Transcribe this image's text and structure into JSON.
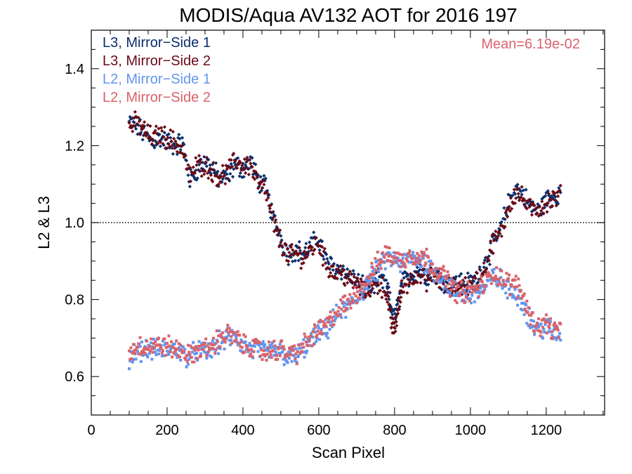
{
  "chart_data": {
    "type": "scatter",
    "title": "MODIS/Aqua AV132 AOT for 2016 197",
    "xlabel": "Scan Pixel",
    "ylabel": "L2 & L3",
    "xlim": [
      0,
      1354
    ],
    "ylim": [
      0.5,
      1.5
    ],
    "xticks": [
      0,
      200,
      400,
      600,
      800,
      1000,
      1200
    ],
    "yticks": [
      0.6,
      0.8,
      1.0,
      1.2,
      1.4
    ],
    "xtick_labels": [
      "0",
      "200",
      "400",
      "600",
      "800",
      "1000",
      "1200"
    ],
    "ytick_labels": [
      "0.6",
      "0.8",
      "1.0",
      "1.2",
      "1.4"
    ],
    "reference_line": 1.0,
    "annotation": "Mean=6.19e-02",
    "legend_position": "top-left",
    "grid": false,
    "series": [
      {
        "name": "L3, Mirror−Side 1",
        "color": "#0b2e6b",
        "x": [
          100,
          120,
          140,
          160,
          180,
          200,
          220,
          240,
          260,
          280,
          300,
          320,
          340,
          360,
          380,
          400,
          420,
          440,
          460,
          480,
          500,
          520,
          540,
          560,
          580,
          600,
          620,
          640,
          660,
          680,
          700,
          720,
          740,
          760,
          780,
          790,
          800,
          810,
          820,
          840,
          860,
          880,
          900,
          920,
          940,
          960,
          980,
          1000,
          1020,
          1040,
          1060,
          1080,
          1100,
          1120,
          1140,
          1160,
          1180,
          1200,
          1220,
          1240
        ],
        "y": [
          1.26,
          1.25,
          1.23,
          1.21,
          1.22,
          1.21,
          1.2,
          1.21,
          1.11,
          1.14,
          1.16,
          1.14,
          1.11,
          1.12,
          1.15,
          1.14,
          1.16,
          1.11,
          1.09,
          1.01,
          0.96,
          0.92,
          0.93,
          0.92,
          0.94,
          0.96,
          0.9,
          0.88,
          0.88,
          0.86,
          0.85,
          0.83,
          0.84,
          0.85,
          0.83,
          0.78,
          0.75,
          0.79,
          0.84,
          0.86,
          0.88,
          0.86,
          0.87,
          0.86,
          0.84,
          0.84,
          0.85,
          0.84,
          0.86,
          0.9,
          0.94,
          0.98,
          1.05,
          1.09,
          1.07,
          1.04,
          1.03,
          1.06,
          1.07,
          1.08
        ]
      },
      {
        "name": "L3, Mirror−Side 2",
        "color": "#6b0a14",
        "x": [
          100,
          120,
          140,
          160,
          180,
          200,
          220,
          240,
          260,
          280,
          300,
          320,
          340,
          360,
          380,
          400,
          420,
          440,
          460,
          480,
          500,
          520,
          540,
          560,
          580,
          600,
          620,
          640,
          660,
          680,
          700,
          720,
          740,
          760,
          780,
          790,
          800,
          810,
          820,
          840,
          860,
          880,
          900,
          920,
          940,
          960,
          980,
          1000,
          1020,
          1040,
          1060,
          1080,
          1100,
          1120,
          1140,
          1160,
          1180,
          1200,
          1220,
          1240
        ],
        "y": [
          1.25,
          1.26,
          1.24,
          1.22,
          1.23,
          1.22,
          1.21,
          1.19,
          1.12,
          1.15,
          1.15,
          1.13,
          1.12,
          1.13,
          1.16,
          1.15,
          1.15,
          1.1,
          1.08,
          1.0,
          0.95,
          0.91,
          0.92,
          0.91,
          0.93,
          0.95,
          0.89,
          0.87,
          0.87,
          0.85,
          0.84,
          0.82,
          0.83,
          0.84,
          0.82,
          0.74,
          0.72,
          0.78,
          0.83,
          0.85,
          0.87,
          0.85,
          0.86,
          0.85,
          0.83,
          0.83,
          0.84,
          0.83,
          0.85,
          0.89,
          0.95,
          0.97,
          1.04,
          1.08,
          1.06,
          1.03,
          1.04,
          1.05,
          1.06,
          1.07
        ]
      },
      {
        "name": "L2, Mirror−Side 1",
        "color": "#6495ed",
        "x": [
          100,
          120,
          140,
          160,
          180,
          200,
          220,
          240,
          260,
          280,
          300,
          320,
          340,
          360,
          380,
          400,
          420,
          440,
          460,
          480,
          500,
          520,
          540,
          560,
          580,
          600,
          620,
          640,
          660,
          680,
          700,
          720,
          740,
          760,
          780,
          800,
          820,
          840,
          860,
          880,
          900,
          920,
          940,
          960,
          980,
          1000,
          1020,
          1040,
          1060,
          1080,
          1100,
          1120,
          1140,
          1160,
          1180,
          1200,
          1220,
          1240
        ],
        "y": [
          0.65,
          0.67,
          0.67,
          0.67,
          0.67,
          0.67,
          0.67,
          0.66,
          0.65,
          0.67,
          0.66,
          0.67,
          0.69,
          0.7,
          0.7,
          0.68,
          0.67,
          0.67,
          0.66,
          0.67,
          0.66,
          0.65,
          0.65,
          0.67,
          0.69,
          0.71,
          0.72,
          0.75,
          0.77,
          0.78,
          0.8,
          0.83,
          0.86,
          0.88,
          0.91,
          0.9,
          0.89,
          0.91,
          0.9,
          0.9,
          0.88,
          0.86,
          0.84,
          0.82,
          0.81,
          0.81,
          0.82,
          0.83,
          0.86,
          0.85,
          0.82,
          0.82,
          0.79,
          0.74,
          0.72,
          0.73,
          0.71,
          0.71
        ]
      },
      {
        "name": "L2, Mirror−Side 2",
        "color": "#d9636b",
        "x": [
          100,
          120,
          140,
          160,
          180,
          200,
          220,
          240,
          260,
          280,
          300,
          320,
          340,
          360,
          380,
          400,
          420,
          440,
          460,
          480,
          500,
          520,
          540,
          560,
          580,
          600,
          620,
          640,
          660,
          680,
          700,
          720,
          740,
          760,
          780,
          800,
          820,
          840,
          860,
          880,
          900,
          920,
          940,
          960,
          980,
          1000,
          1020,
          1040,
          1060,
          1080,
          1100,
          1120,
          1140,
          1160,
          1180,
          1200,
          1220,
          1240
        ],
        "y": [
          0.66,
          0.68,
          0.68,
          0.68,
          0.68,
          0.68,
          0.67,
          0.67,
          0.65,
          0.67,
          0.67,
          0.68,
          0.7,
          0.71,
          0.7,
          0.68,
          0.68,
          0.67,
          0.66,
          0.67,
          0.67,
          0.66,
          0.66,
          0.68,
          0.7,
          0.72,
          0.73,
          0.76,
          0.78,
          0.79,
          0.82,
          0.84,
          0.87,
          0.9,
          0.92,
          0.91,
          0.9,
          0.92,
          0.91,
          0.91,
          0.89,
          0.87,
          0.85,
          0.82,
          0.82,
          0.82,
          0.83,
          0.84,
          0.87,
          0.86,
          0.84,
          0.84,
          0.81,
          0.75,
          0.73,
          0.74,
          0.72,
          0.72
        ]
      }
    ]
  }
}
